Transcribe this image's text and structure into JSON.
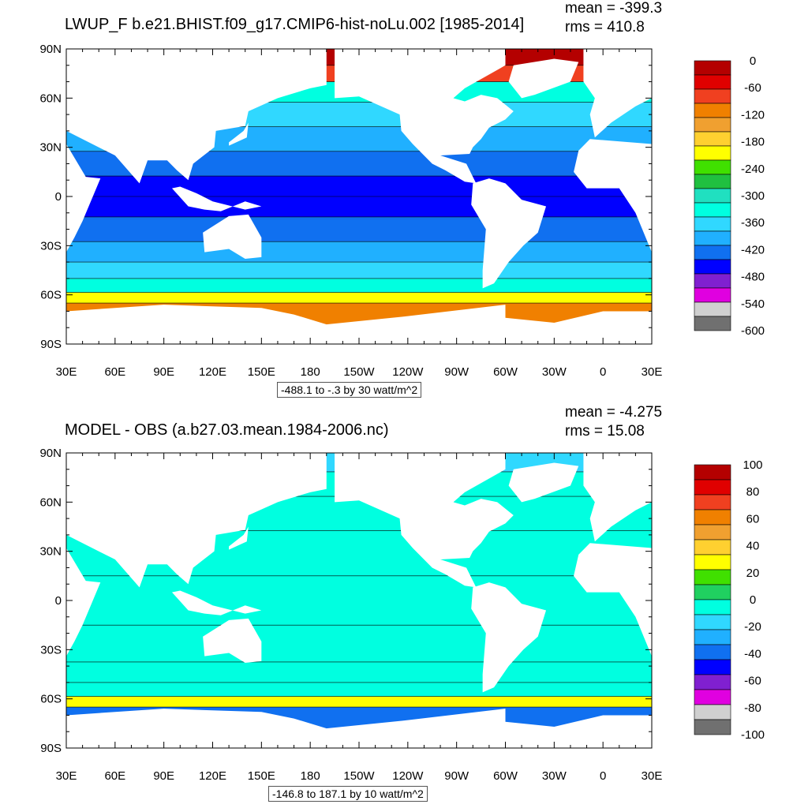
{
  "chart_data": [
    {
      "type": "heatmap",
      "title": "LWUP_F b.e21.BHIST.f09_g17.CMIP6-hist-noLu.002 [1985-2014]",
      "stats": {
        "mean": "mean = -399.3",
        "rms": "rms = 410.8"
      },
      "subtitle": "-488.1 to -.3 by 30 watt/m^2",
      "x_ticks": [
        "30E",
        "60E",
        "90E",
        "120E",
        "150E",
        "180",
        "150W",
        "120W",
        "90W",
        "60W",
        "30W",
        "0",
        "30E"
      ],
      "y_ticks": [
        "90N",
        "60N",
        "30N",
        "0",
        "30S",
        "60S",
        "90S"
      ],
      "ylim": [
        -90,
        90
      ],
      "xlim": [
        30,
        390
      ],
      "colorbar": {
        "labels": [
          "0",
          "-60",
          "-120",
          "-180",
          "-240",
          "-300",
          "-360",
          "-420",
          "-480",
          "-540",
          "-600"
        ],
        "colors": [
          "#b40000",
          "#e00000",
          "#f04020",
          "#f08000",
          "#f0a030",
          "#ffd030",
          "#ffff00",
          "#40e000",
          "#20c040",
          "#20e0c0",
          "#00ffe0",
          "#30d8ff",
          "#20b0ff",
          "#1070f0",
          "#0000ff",
          "#8020d0",
          "#e000e0",
          "#d0d0d0",
          "#707070"
        ]
      },
      "latitude_bands": [
        {
          "lat": 85,
          "value": -15
        },
        {
          "lat": 75,
          "value": -90
        },
        {
          "lat": 65,
          "value": -330
        },
        {
          "lat": 50,
          "value": -370
        },
        {
          "lat": 35,
          "value": -400
        },
        {
          "lat": 20,
          "value": -440
        },
        {
          "lat": 5,
          "value": -470
        },
        {
          "lat": -5,
          "value": -470
        },
        {
          "lat": -20,
          "value": -440
        },
        {
          "lat": -35,
          "value": -400
        },
        {
          "lat": -45,
          "value": -370
        },
        {
          "lat": -55,
          "value": -340
        },
        {
          "lat": -62,
          "value": -200
        },
        {
          "lat": -68,
          "value": -120
        }
      ]
    },
    {
      "type": "heatmap",
      "title": "MODEL - OBS (a.b27.03.mean.1984-2006.nc)",
      "stats": {
        "mean": "mean = -4.275",
        "rms": "rms = 15.08"
      },
      "subtitle": "-146.8 to 187.1 by 10 watt/m^2",
      "x_ticks": [
        "30E",
        "60E",
        "90E",
        "120E",
        "150E",
        "180",
        "150W",
        "120W",
        "90W",
        "60W",
        "30W",
        "0",
        "30E"
      ],
      "y_ticks": [
        "90N",
        "60N",
        "30N",
        "0",
        "30S",
        "60S",
        "90S"
      ],
      "ylim": [
        -90,
        90
      ],
      "xlim": [
        30,
        390
      ],
      "colorbar": {
        "labels": [
          "100",
          "80",
          "60",
          "40",
          "20",
          "0",
          "-20",
          "-40",
          "-60",
          "-80",
          "-100"
        ],
        "colors": [
          "#b40000",
          "#e00000",
          "#f04020",
          "#f08000",
          "#f0a030",
          "#ffd030",
          "#ffff00",
          "#40e000",
          "#20d060",
          "#00ffe0",
          "#30d8ff",
          "#20b0ff",
          "#1070f0",
          "#0000ff",
          "#8020d0",
          "#e000e0",
          "#d0d0d0",
          "#707070"
        ]
      },
      "latitude_bands": [
        {
          "lat": 85,
          "value": -15
        },
        {
          "lat": 72,
          "value": -5
        },
        {
          "lat": 55,
          "value": -10
        },
        {
          "lat": 30,
          "value": -5
        },
        {
          "lat": 0,
          "value": -5
        },
        {
          "lat": -30,
          "value": 0
        },
        {
          "lat": -45,
          "value": -5
        },
        {
          "lat": -55,
          "value": -10
        },
        {
          "lat": -62,
          "value": 30
        },
        {
          "lat": -68,
          "value": -40
        }
      ]
    }
  ]
}
